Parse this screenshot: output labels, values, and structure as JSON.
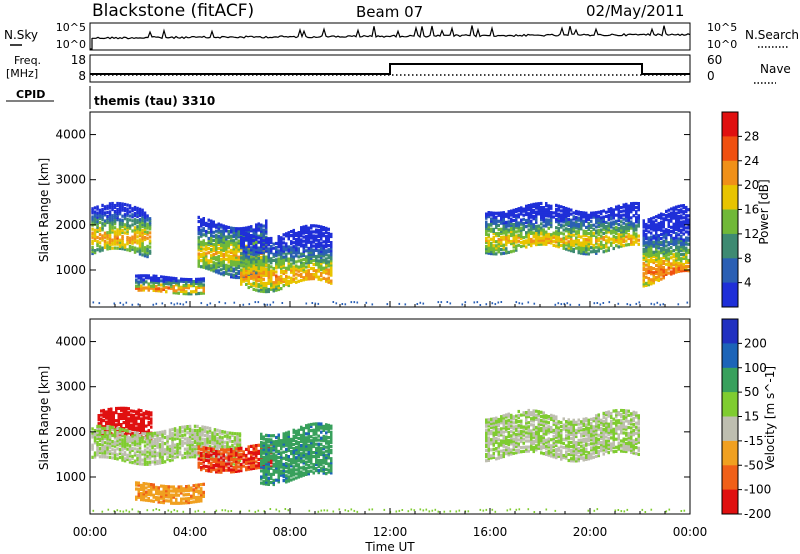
{
  "header": {
    "site": "Blackstone (fitACF)",
    "beam": "Beam 07",
    "date": "02/May/2011"
  },
  "status_labels": {
    "nsky": "N.Sky",
    "nsky_top": "10^5",
    "nsky_bottom": "10^0",
    "nsearch": "N.Search",
    "nsearch_top": "10^5",
    "nsearch_bottom": "10^0",
    "freq_line1": "Freq.",
    "freq_line2": "[MHz]",
    "freq_top": "18",
    "freq_bottom": "8",
    "nave": "Nave",
    "nave_top": "60",
    "nave_bottom": "0",
    "cpid": "CPID",
    "cpid_value": "themis (tau) 3310"
  },
  "chart_data": [
    {
      "type": "heatmap",
      "panel": "power",
      "ylabel": "Slant Range [km]",
      "xlabel": "",
      "xlim": [
        "00:00",
        "24:00"
      ],
      "ylim": [
        180,
        4500
      ],
      "y_ticks": [
        1000,
        2000,
        3000,
        4000
      ],
      "colorbar": {
        "label": "Power [dB]",
        "ticks": [
          4,
          8,
          12,
          16,
          20,
          24,
          28
        ],
        "range": [
          0,
          32
        ],
        "colors": [
          "#1f2fd8",
          "#2a5fb4",
          "#3e8a72",
          "#70b838",
          "#e8c400",
          "#f09018",
          "#f05010",
          "#e01010"
        ]
      },
      "features": [
        {
          "t": [
            0.05,
            2.4
          ],
          "r": [
            1400,
            2400
          ],
          "center": 1750,
          "level": 22
        },
        {
          "t": [
            1.8,
            4.5
          ],
          "r": [
            550,
            900
          ],
          "center": 620,
          "level": 24
        },
        {
          "t": [
            4.3,
            7.0
          ],
          "r": [
            1000,
            2100
          ],
          "center": 1400,
          "level": 20
        },
        {
          "t": [
            6.0,
            9.6
          ],
          "r": [
            700,
            1900
          ],
          "center": 900,
          "level": 22
        },
        {
          "t": [
            15.8,
            22.0
          ],
          "r": [
            1500,
            2400
          ],
          "center": 1700,
          "level": 20
        },
        {
          "t": [
            22.1,
            24.0
          ],
          "r": [
            850,
            2300
          ],
          "center": 1000,
          "level": 24
        }
      ]
    },
    {
      "type": "heatmap",
      "panel": "velocity",
      "ylabel": "Slant Range [km]",
      "xlabel": "Time UT",
      "xlim": [
        "00:00",
        "24:00"
      ],
      "ylim": [
        180,
        4500
      ],
      "y_ticks": [
        1000,
        2000,
        3000,
        4000
      ],
      "x_ticks": [
        "00:00",
        "04:00",
        "08:00",
        "12:00",
        "16:00",
        "20:00",
        "00:00"
      ],
      "colorbar": {
        "label": "Velocity [m s^-1]",
        "ticks": [
          200,
          100,
          50,
          15,
          -15,
          -50,
          -100,
          -200
        ],
        "range": [
          -250,
          250
        ],
        "colors": [
          "#2030c0",
          "#1c64b8",
          "#38a05c",
          "#7fcc30",
          "#bebeb0",
          "#f0a020",
          "#f06018",
          "#e01010"
        ]
      },
      "features": [
        {
          "t": [
            0.3,
            2.5
          ],
          "r": [
            1900,
            2500
          ],
          "velocity": -180
        },
        {
          "t": [
            0.05,
            6.0
          ],
          "r": [
            1400,
            2100
          ],
          "velocity": 0
        },
        {
          "t": [
            1.8,
            4.5
          ],
          "r": [
            500,
            900
          ],
          "velocity": -60
        },
        {
          "t": [
            4.3,
            7.2
          ],
          "r": [
            1200,
            1700
          ],
          "velocity": -150
        },
        {
          "t": [
            6.8,
            9.6
          ],
          "r": [
            1000,
            2100
          ],
          "velocity": 60
        },
        {
          "t": [
            15.8,
            22.0
          ],
          "r": [
            1500,
            2400
          ],
          "velocity": 0
        }
      ]
    }
  ]
}
